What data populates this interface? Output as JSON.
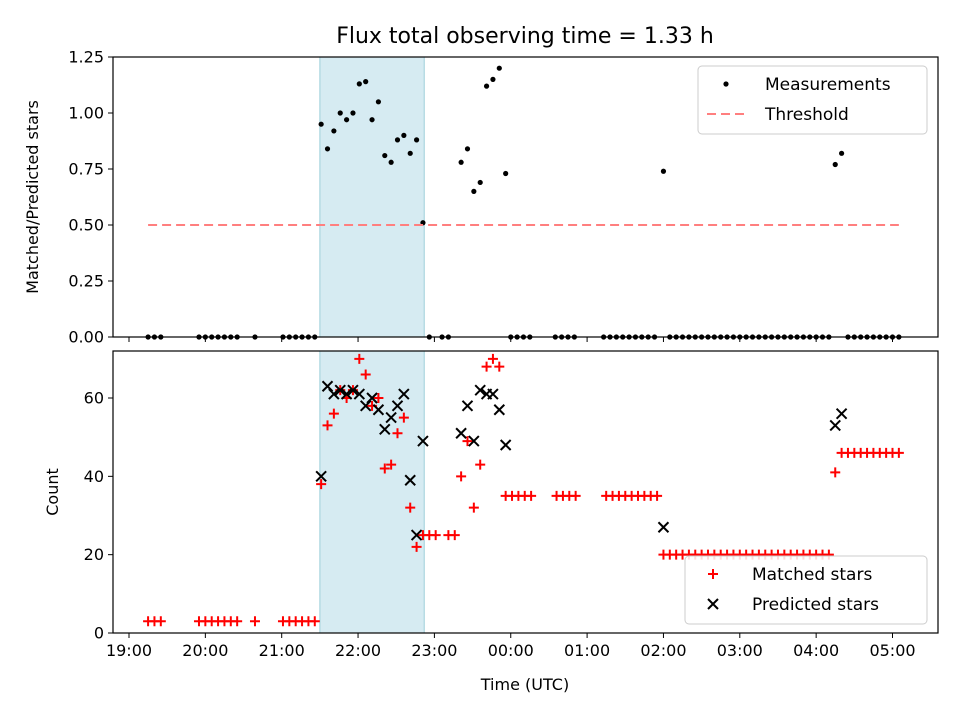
{
  "chart_data": [
    {
      "type": "scatter",
      "title": "Flux total observing time = 1.33 h",
      "ylabel": "Matched/Predicted stars",
      "xlabel": "",
      "ylim": [
        0,
        1.25
      ],
      "yticks": [
        "0.00",
        "0.25",
        "0.50",
        "0.75",
        "1.00",
        "1.25"
      ],
      "ytick_values": [
        0,
        0.25,
        0.5,
        0.75,
        1.0,
        1.25
      ],
      "grid": false,
      "legend": "top-right",
      "shaded_interval": [
        "21:30",
        "22:52"
      ],
      "series": [
        {
          "name": "Measurements",
          "marker": "dot",
          "color": "#000000",
          "points": [
            [
              "19:15",
              0
            ],
            [
              "19:20",
              0
            ],
            [
              "19:25",
              0
            ],
            [
              "19:55",
              0
            ],
            [
              "20:00",
              0
            ],
            [
              "20:05",
              0
            ],
            [
              "20:10",
              0
            ],
            [
              "20:15",
              0
            ],
            [
              "20:20",
              0
            ],
            [
              "20:25",
              0
            ],
            [
              "20:39",
              0
            ],
            [
              "21:01",
              0
            ],
            [
              "21:06",
              0
            ],
            [
              "21:11",
              0
            ],
            [
              "21:16",
              0
            ],
            [
              "21:21",
              0
            ],
            [
              "21:26",
              0
            ],
            [
              "21:31",
              0.95
            ],
            [
              "21:36",
              0.84
            ],
            [
              "21:41",
              0.92
            ],
            [
              "21:46",
              1.0
            ],
            [
              "21:51",
              0.97
            ],
            [
              "21:56",
              1.0
            ],
            [
              "22:01",
              1.13
            ],
            [
              "22:06",
              1.14
            ],
            [
              "22:11",
              0.97
            ],
            [
              "22:16",
              1.05
            ],
            [
              "22:21",
              0.81
            ],
            [
              "22:26",
              0.78
            ],
            [
              "22:31",
              0.88
            ],
            [
              "22:36",
              0.9
            ],
            [
              "22:41",
              0.82
            ],
            [
              "22:46",
              0.88
            ],
            [
              "22:51",
              0.51
            ],
            [
              "22:56",
              0
            ],
            [
              "23:06",
              0
            ],
            [
              "23:11",
              0
            ],
            [
              "23:21",
              0.78
            ],
            [
              "23:26",
              0.84
            ],
            [
              "23:31",
              0.65
            ],
            [
              "23:36",
              0.69
            ],
            [
              "23:41",
              1.12
            ],
            [
              "23:46",
              1.15
            ],
            [
              "23:51",
              1.2
            ],
            [
              "23:56",
              0.73
            ],
            [
              "00:00",
              0
            ],
            [
              "00:05",
              0
            ],
            [
              "00:10",
              0
            ],
            [
              "00:15",
              0
            ],
            [
              "00:35",
              0
            ],
            [
              "00:40",
              0
            ],
            [
              "00:45",
              0
            ],
            [
              "00:50",
              0
            ],
            [
              "01:13",
              0
            ],
            [
              "01:18",
              0
            ],
            [
              "01:23",
              0
            ],
            [
              "01:28",
              0
            ],
            [
              "01:33",
              0
            ],
            [
              "01:38",
              0
            ],
            [
              "01:43",
              0
            ],
            [
              "01:48",
              0
            ],
            [
              "01:53",
              0
            ],
            [
              "02:00",
              0.74
            ],
            [
              "02:05",
              0
            ],
            [
              "02:10",
              0
            ],
            [
              "02:15",
              0
            ],
            [
              "02:20",
              0
            ],
            [
              "02:25",
              0
            ],
            [
              "02:30",
              0
            ],
            [
              "02:35",
              0
            ],
            [
              "02:40",
              0
            ],
            [
              "02:45",
              0
            ],
            [
              "02:50",
              0
            ],
            [
              "02:55",
              0
            ],
            [
              "03:00",
              0
            ],
            [
              "03:05",
              0
            ],
            [
              "03:10",
              0
            ],
            [
              "03:15",
              0
            ],
            [
              "03:20",
              0
            ],
            [
              "03:25",
              0
            ],
            [
              "03:30",
              0
            ],
            [
              "03:35",
              0
            ],
            [
              "03:40",
              0
            ],
            [
              "03:45",
              0
            ],
            [
              "03:50",
              0
            ],
            [
              "03:55",
              0
            ],
            [
              "04:00",
              0
            ],
            [
              "04:05",
              0
            ],
            [
              "04:10",
              0
            ],
            [
              "04:15",
              0.77
            ],
            [
              "04:20",
              0.82
            ],
            [
              "04:25",
              0
            ],
            [
              "04:30",
              0
            ],
            [
              "04:35",
              0
            ],
            [
              "04:40",
              0
            ],
            [
              "04:45",
              0
            ],
            [
              "04:50",
              0
            ],
            [
              "04:55",
              0
            ],
            [
              "05:00",
              0
            ],
            [
              "05:05",
              0
            ]
          ]
        },
        {
          "name": "Threshold",
          "marker": "dashed-line",
          "color": "#ff7f7f",
          "points": [
            [
              "19:15",
              0.5
            ],
            [
              "05:05",
              0.5
            ]
          ]
        }
      ]
    },
    {
      "type": "scatter",
      "title": "",
      "ylabel": "Count",
      "xlabel": "Time (UTC)",
      "ylim": [
        0,
        72
      ],
      "yticks": [
        "0",
        "20",
        "40",
        "60"
      ],
      "ytick_values": [
        0,
        20,
        40,
        60
      ],
      "xticks": [
        "19:00",
        "20:00",
        "21:00",
        "22:00",
        "23:00",
        "00:00",
        "01:00",
        "02:00",
        "03:00",
        "04:00",
        "05:00"
      ],
      "grid": false,
      "legend": "bottom-right",
      "shaded_interval": [
        "21:30",
        "22:52"
      ],
      "series": [
        {
          "name": "Matched stars",
          "marker": "plus",
          "color": "#ff0000",
          "points": [
            [
              "19:15",
              3
            ],
            [
              "19:20",
              3
            ],
            [
              "19:25",
              3
            ],
            [
              "19:55",
              3
            ],
            [
              "20:00",
              3
            ],
            [
              "20:05",
              3
            ],
            [
              "20:10",
              3
            ],
            [
              "20:15",
              3
            ],
            [
              "20:20",
              3
            ],
            [
              "20:25",
              3
            ],
            [
              "20:39",
              3
            ],
            [
              "21:01",
              3
            ],
            [
              "21:06",
              3
            ],
            [
              "21:11",
              3
            ],
            [
              "21:16",
              3
            ],
            [
              "21:21",
              3
            ],
            [
              "21:26",
              3
            ],
            [
              "21:31",
              38
            ],
            [
              "21:36",
              53
            ],
            [
              "21:41",
              56
            ],
            [
              "21:46",
              62
            ],
            [
              "21:51",
              60
            ],
            [
              "21:56",
              62
            ],
            [
              "22:01",
              70
            ],
            [
              "22:06",
              66
            ],
            [
              "22:11",
              58
            ],
            [
              "22:16",
              60
            ],
            [
              "22:21",
              42
            ],
            [
              "22:26",
              43
            ],
            [
              "22:31",
              51
            ],
            [
              "22:36",
              55
            ],
            [
              "22:41",
              32
            ],
            [
              "22:46",
              22
            ],
            [
              "22:51",
              25
            ],
            [
              "22:56",
              25
            ],
            [
              "23:01",
              25
            ],
            [
              "23:11",
              25
            ],
            [
              "23:16",
              25
            ],
            [
              "23:21",
              40
            ],
            [
              "23:26",
              49
            ],
            [
              "23:31",
              32
            ],
            [
              "23:36",
              43
            ],
            [
              "23:41",
              68
            ],
            [
              "23:46",
              70
            ],
            [
              "23:51",
              68
            ],
            [
              "23:56",
              35
            ],
            [
              "00:01",
              35
            ],
            [
              "00:06",
              35
            ],
            [
              "00:11",
              35
            ],
            [
              "00:16",
              35
            ],
            [
              "00:36",
              35
            ],
            [
              "00:41",
              35
            ],
            [
              "00:46",
              35
            ],
            [
              "00:51",
              35
            ],
            [
              "01:15",
              35
            ],
            [
              "01:20",
              35
            ],
            [
              "01:25",
              35
            ],
            [
              "01:30",
              35
            ],
            [
              "01:35",
              35
            ],
            [
              "01:40",
              35
            ],
            [
              "01:45",
              35
            ],
            [
              "01:50",
              35
            ],
            [
              "01:55",
              35
            ],
            [
              "02:00",
              20
            ],
            [
              "02:05",
              20
            ],
            [
              "02:10",
              20
            ],
            [
              "02:15",
              20
            ],
            [
              "02:20",
              20
            ],
            [
              "02:25",
              20
            ],
            [
              "02:30",
              20
            ],
            [
              "02:35",
              20
            ],
            [
              "02:40",
              20
            ],
            [
              "02:45",
              20
            ],
            [
              "02:50",
              20
            ],
            [
              "02:55",
              20
            ],
            [
              "03:00",
              20
            ],
            [
              "03:05",
              20
            ],
            [
              "03:10",
              20
            ],
            [
              "03:15",
              20
            ],
            [
              "03:20",
              20
            ],
            [
              "03:25",
              20
            ],
            [
              "03:30",
              20
            ],
            [
              "03:35",
              20
            ],
            [
              "03:40",
              20
            ],
            [
              "03:45",
              20
            ],
            [
              "03:50",
              20
            ],
            [
              "03:55",
              20
            ],
            [
              "04:00",
              20
            ],
            [
              "04:05",
              20
            ],
            [
              "04:10",
              20
            ],
            [
              "04:15",
              41
            ],
            [
              "04:20",
              46
            ],
            [
              "04:25",
              46
            ],
            [
              "04:30",
              46
            ],
            [
              "04:35",
              46
            ],
            [
              "04:40",
              46
            ],
            [
              "04:45",
              46
            ],
            [
              "04:50",
              46
            ],
            [
              "04:55",
              46
            ],
            [
              "05:00",
              46
            ],
            [
              "05:05",
              46
            ]
          ]
        },
        {
          "name": "Predicted stars",
          "marker": "x",
          "color": "#000000",
          "points": [
            [
              "21:31",
              40
            ],
            [
              "21:36",
              63
            ],
            [
              "21:41",
              61
            ],
            [
              "21:46",
              62
            ],
            [
              "21:51",
              61
            ],
            [
              "21:56",
              62
            ],
            [
              "22:01",
              61
            ],
            [
              "22:06",
              58
            ],
            [
              "22:11",
              60
            ],
            [
              "22:16",
              57
            ],
            [
              "22:21",
              52
            ],
            [
              "22:26",
              55
            ],
            [
              "22:31",
              58
            ],
            [
              "22:36",
              61
            ],
            [
              "22:41",
              39
            ],
            [
              "22:46",
              25
            ],
            [
              "22:51",
              49
            ],
            [
              "23:21",
              51
            ],
            [
              "23:26",
              58
            ],
            [
              "23:31",
              49
            ],
            [
              "23:36",
              62
            ],
            [
              "23:41",
              61
            ],
            [
              "23:46",
              61
            ],
            [
              "23:51",
              57
            ],
            [
              "23:56",
              48
            ],
            [
              "02:00",
              27
            ],
            [
              "04:15",
              53
            ],
            [
              "04:20",
              56
            ]
          ]
        }
      ]
    }
  ]
}
